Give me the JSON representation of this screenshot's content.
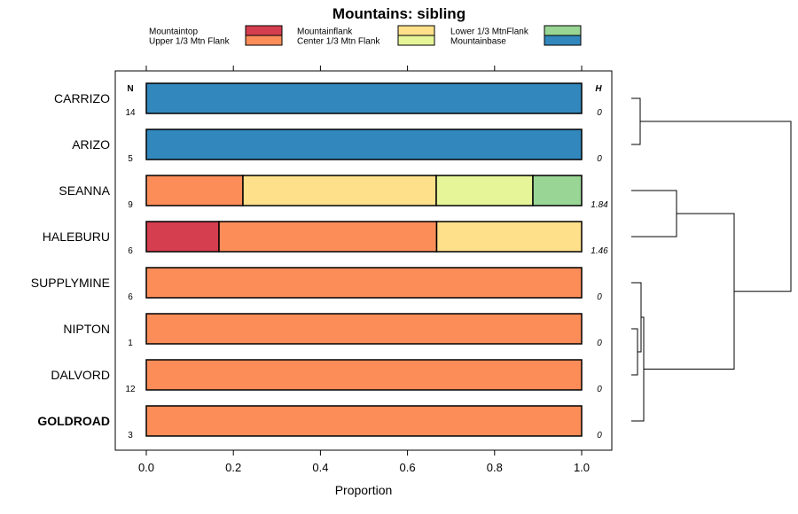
{
  "chart_data": {
    "type": "bar",
    "orientation": "horizontal-stacked",
    "title": "Mountains: sibling",
    "xlabel": "Proportion",
    "xlim": [
      0,
      1
    ],
    "xticks": [
      "0.0",
      "0.2",
      "0.4",
      "0.6",
      "0.8",
      "1.0"
    ],
    "xtick_values": [
      0,
      0.2,
      0.4,
      0.6,
      0.8,
      1.0
    ],
    "n_header": "N",
    "h_header": "H",
    "categories_legend": [
      {
        "name": "Mountaintop",
        "color": "#d53e4f"
      },
      {
        "name": "Upper 1/3 Mtn Flank",
        "color": "#fc8d59"
      },
      {
        "name": "Mountainflank",
        "color": "#fee08b"
      },
      {
        "name": "Center 1/3 Mtn Flank",
        "color": "#e6f598"
      },
      {
        "name": "Lower 1/3 MtnFlank",
        "color": "#99d594"
      },
      {
        "name": "Mountainbase",
        "color": "#3288bd"
      }
    ],
    "rows": [
      {
        "label": "CARRIZO",
        "n": "14",
        "h": "0",
        "bold": false,
        "segments": [
          {
            "category": "Mountainbase",
            "value": 1.0
          }
        ]
      },
      {
        "label": "ARIZO",
        "n": "5",
        "h": "0",
        "bold": false,
        "segments": [
          {
            "category": "Mountainbase",
            "value": 1.0
          }
        ]
      },
      {
        "label": "SEANNA",
        "n": "9",
        "h": "1.84",
        "bold": false,
        "segments": [
          {
            "category": "Upper 1/3 Mtn Flank",
            "value": 0.222
          },
          {
            "category": "Mountainflank",
            "value": 0.444
          },
          {
            "category": "Center 1/3 Mtn Flank",
            "value": 0.222
          },
          {
            "category": "Lower 1/3 MtnFlank",
            "value": 0.112
          }
        ]
      },
      {
        "label": "HALEBURU",
        "n": "6",
        "h": "1.46",
        "bold": false,
        "segments": [
          {
            "category": "Mountaintop",
            "value": 0.167
          },
          {
            "category": "Upper 1/3 Mtn Flank",
            "value": 0.5
          },
          {
            "category": "Mountainflank",
            "value": 0.333
          }
        ]
      },
      {
        "label": "SUPPLYMINE",
        "n": "6",
        "h": "0",
        "bold": false,
        "segments": [
          {
            "category": "Upper 1/3 Mtn Flank",
            "value": 1.0
          }
        ]
      },
      {
        "label": "NIPTON",
        "n": "1",
        "h": "0",
        "bold": false,
        "segments": [
          {
            "category": "Upper 1/3 Mtn Flank",
            "value": 1.0
          }
        ]
      },
      {
        "label": "DALVORD",
        "n": "12",
        "h": "0",
        "bold": false,
        "segments": [
          {
            "category": "Upper 1/3 Mtn Flank",
            "value": 1.0
          }
        ]
      },
      {
        "label": "GOLDROAD",
        "n": "3",
        "h": "0",
        "bold": true,
        "segments": [
          {
            "category": "Upper 1/3 Mtn Flank",
            "value": 1.0
          }
        ]
      }
    ],
    "dendrogram": "hierarchical clustering of rows: (CARRIZO,ARIZO), (SEANNA,HALEBURU), ((SUPPLYMINE,(NIPTON,DALVORD)),GOLDROAD)"
  }
}
